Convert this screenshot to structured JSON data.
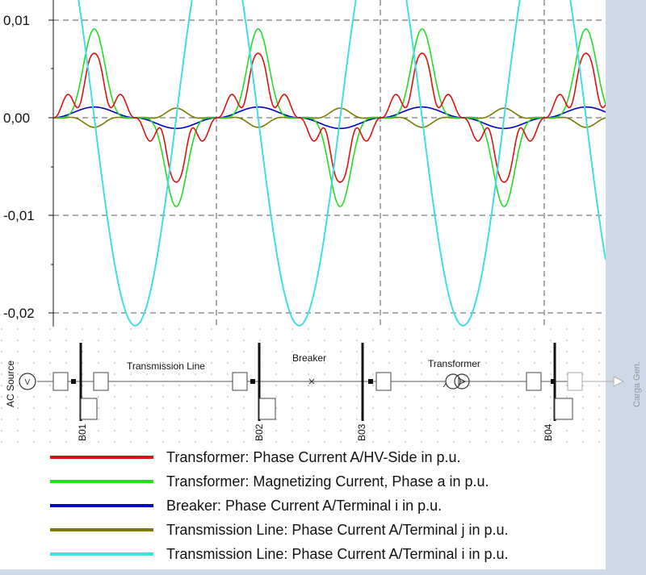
{
  "chart_data": {
    "type": "line",
    "yticks": [
      "0,01",
      "0,00",
      "-0,01",
      "-0,02"
    ],
    "y_tick_values": [
      0.01,
      0.0,
      -0.01,
      -0.02
    ],
    "ylim": [
      -0.0213,
      0.012
    ],
    "grid": true,
    "period": 1,
    "series": [
      {
        "name": "Transformer: Phase Current A/HV-Side in p.u.",
        "color": "#dd1111",
        "peak": 0.0066
      },
      {
        "name": "Transformer: Magnetizing Current, Phase a in p.u.",
        "color": "#22dd22",
        "peak": 0.0091
      },
      {
        "name": "Breaker: Phase Current A/Terminal i in p.u.",
        "color": "#0000cc",
        "peak": 0.0011
      },
      {
        "name": "Transmission Line: Phase Current A/Terminal j in p.u.",
        "color": "#7a7a00",
        "peak": 0.0011
      },
      {
        "name": "Transmission Line: Phase Current A/Terminal i in p.u.",
        "color": "#44dddd",
        "peak": 0.0213
      }
    ]
  },
  "diagram": {
    "source_label": "AC Source",
    "source_symbol": "V",
    "line_label": "Transmission Line",
    "breaker_label": "Breaker",
    "transformer_label": "Transformer",
    "load_label": "Carga Gen.",
    "buses": [
      "B01",
      "B02",
      "B03",
      "B04"
    ]
  }
}
